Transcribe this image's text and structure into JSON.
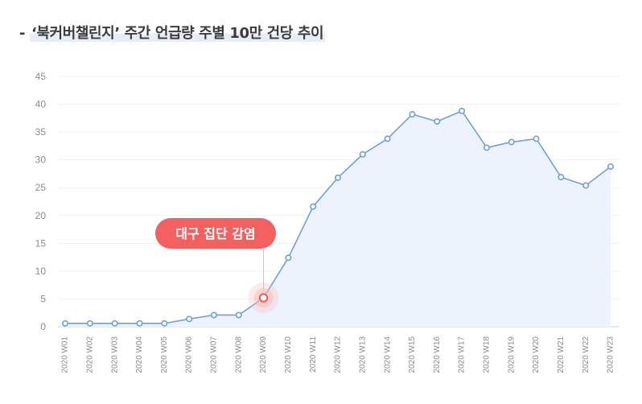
{
  "header": {
    "prefix": "- ",
    "title": "‘북커버챌린지’ 주간 언급량 주별 10만 건당 추이"
  },
  "colors": {
    "line": "#6f9fe2",
    "area": "#edf3fd",
    "grid": "#eef1f6",
    "axis": "#cfd5df",
    "callout": "#f2605f",
    "highlight": "#f25a59",
    "highlight_glow": "#f8b6b2",
    "tick_text": "#8b8b8b"
  },
  "chart_data": {
    "type": "area",
    "title": "",
    "xlabel": "",
    "ylabel": "",
    "ylim": [
      0,
      45
    ],
    "y_ticks": [
      0,
      5,
      10,
      15,
      20,
      25,
      30,
      35,
      40,
      45
    ],
    "grid": true,
    "legend": "none",
    "categories": [
      "2020 W01",
      "2020 W02",
      "2020 W03",
      "2020 W04",
      "2020 W05",
      "2020 W06",
      "2020 W07",
      "2020 W08",
      "2020 W09",
      "2020 W10",
      "2020 W11",
      "2020 W12",
      "2020 W13",
      "2020 W14",
      "2020 W15",
      "2020 W16",
      "2020 W17",
      "2020 W18",
      "2020 W19",
      "2020 W20",
      "2020 W21",
      "2020 W22",
      "2020 W23"
    ],
    "values": [
      0.6,
      0.6,
      0.6,
      0.6,
      0.6,
      1.4,
      2.1,
      2.1,
      5.2,
      12.4,
      21.6,
      26.8,
      31.0,
      33.8,
      38.2,
      36.9,
      38.8,
      32.2,
      33.2,
      33.8,
      26.9,
      25.4,
      28.8
    ],
    "annotations": [
      {
        "category": "2020 W09",
        "text": "대구 집단 감염"
      }
    ]
  }
}
